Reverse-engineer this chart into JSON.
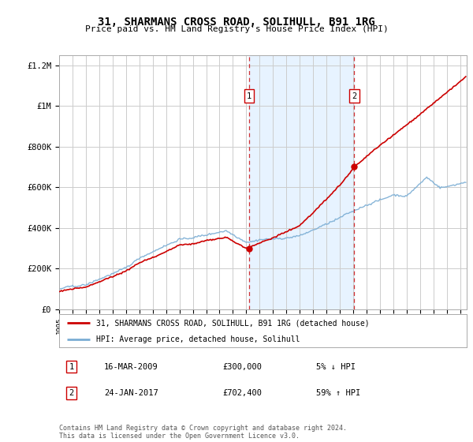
{
  "title": "31, SHARMANS CROSS ROAD, SOLIHULL, B91 1RG",
  "subtitle": "Price paid vs. HM Land Registry's House Price Index (HPI)",
  "legend_line1": "31, SHARMANS CROSS ROAD, SOLIHULL, B91 1RG (detached house)",
  "legend_line2": "HPI: Average price, detached house, Solihull",
  "transaction1_date": "16-MAR-2009",
  "transaction1_price": "£300,000",
  "transaction1_hpi": "5% ↓ HPI",
  "transaction1_year": 2009.21,
  "transaction1_value": 300000,
  "transaction2_date": "24-JAN-2017",
  "transaction2_price": "£702,400",
  "transaction2_hpi": "59% ↑ HPI",
  "transaction2_year": 2017.07,
  "transaction2_value": 702400,
  "footer": "Contains HM Land Registry data © Crown copyright and database right 2024.\nThis data is licensed under the Open Government Licence v3.0.",
  "hpi_color": "#7aadd4",
  "price_color": "#cc0000",
  "shade_color": "#ddeeff",
  "vline_color": "#cc0000",
  "ylim_max": 1250000,
  "xlim_start": 1995,
  "xlim_end": 2025.5,
  "grid_color": "#cccccc",
  "yticks": [
    0,
    200000,
    400000,
    600000,
    800000,
    1000000,
    1200000
  ],
  "ylabels": [
    "£0",
    "£200K",
    "£400K",
    "£600K",
    "£800K",
    "£1M",
    "£1.2M"
  ]
}
